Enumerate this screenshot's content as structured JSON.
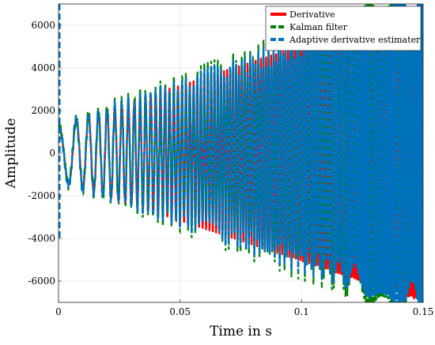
{
  "chart_data": {
    "type": "line",
    "title": "",
    "xlabel": "Time in s",
    "ylabel": "Amplitude",
    "xlim": [
      0,
      0.15
    ],
    "ylim": [
      -7000,
      7000
    ],
    "x_ticks": [
      0,
      0.05,
      0.1,
      0.15
    ],
    "x_tick_labels": [
      "0",
      "0.05",
      "0.1",
      "0.15"
    ],
    "y_ticks": [
      -6000,
      -4000,
      -2000,
      0,
      2000,
      4000,
      6000
    ],
    "y_tick_labels": [
      "-6000",
      "-4000",
      "-2000",
      "0",
      "2000",
      "4000",
      "6000"
    ],
    "grid": true,
    "legend_position": "top-right",
    "signal": {
      "description_shape": "linear chirp with linearly growing envelope",
      "envelope_start": 1300,
      "envelope_end": 7000,
      "f0_hz": 100,
      "f1_hz": 1600,
      "duration_s": 0.15
    },
    "series": [
      {
        "name": "Derivative",
        "color": "#ff0000",
        "style": "solid"
      },
      {
        "name": "Kalman filter",
        "color": "#008000",
        "style": "dashed"
      },
      {
        "name": "Adaptive derivative estimater",
        "color": "#0072bd",
        "style": "dashed"
      }
    ]
  }
}
